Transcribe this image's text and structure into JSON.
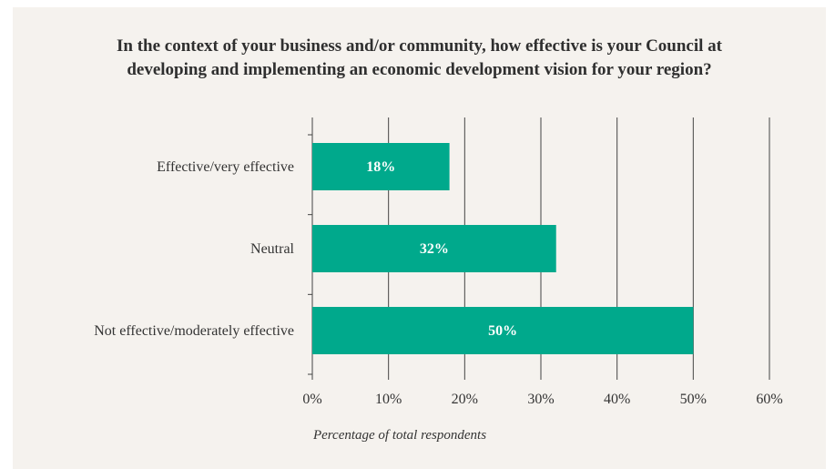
{
  "title_lines": [
    "In the context of your business and/or community, how effective is your Council at",
    "developing and implementing an economic development vision for your region?"
  ],
  "colors": {
    "bar": "#00a98c",
    "background": "#f5f2ee",
    "axis": "#444444",
    "text": "#333333",
    "bar_label": "#ffffff"
  },
  "chart_data": {
    "type": "bar",
    "orientation": "horizontal",
    "title": "In the context of your business and/or community, how effective is your Council at developing and implementing an economic development vision for your region?",
    "categories": [
      "Effective/very effective",
      "Neutral",
      "Not effective/moderately effective"
    ],
    "values": [
      18,
      32,
      50
    ],
    "data_labels": [
      "18%",
      "32%",
      "50%"
    ],
    "xlabel": "Percentage of total respondents",
    "ylabel": "",
    "xlim": [
      0,
      60
    ],
    "xticks": [
      0,
      10,
      20,
      30,
      40,
      50,
      60
    ],
    "xtick_labels": [
      "0%",
      "10%",
      "20%",
      "30%",
      "40%",
      "50%",
      "60%"
    ],
    "grid": true,
    "legend": "none"
  }
}
